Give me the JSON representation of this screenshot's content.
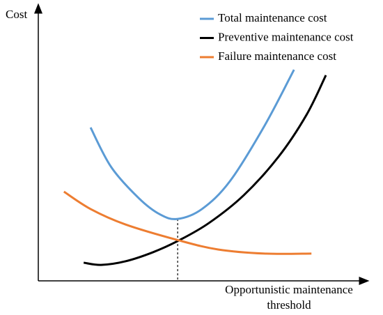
{
  "chart_data": {
    "type": "line",
    "y_label": "Cost",
    "x_label": "Opportunistic maintenance threshold",
    "xlim": [
      0,
      100
    ],
    "ylim": [
      0,
      100
    ],
    "series": [
      {
        "name": "Total maintenance cost",
        "color": "#5b9bd5",
        "x": [
          15.9,
          22.2,
          30.7,
          37.1,
          42.4,
          49.8,
          58.3,
          68.9,
          77.8
        ],
        "values": [
          55.7,
          41.3,
          29.9,
          24.1,
          22.5,
          26.1,
          36.2,
          56.5,
          76.7
        ]
      },
      {
        "name": "Preventive maintenance cost",
        "color": "#000000",
        "x": [
          13.8,
          19.1,
          26.5,
          34.9,
          42.8,
          51.9,
          62.5,
          73.1,
          81.6,
          87.5
        ],
        "values": [
          6.6,
          5.8,
          7.1,
          10.4,
          14.7,
          21.0,
          31.1,
          45.1,
          60.3,
          74.7
        ]
      },
      {
        "name": "Failure maintenance cost",
        "color": "#ed7d31",
        "x": [
          7.8,
          15.9,
          26.5,
          42.8,
          54.7,
          68.9,
          83.1
        ],
        "values": [
          32.4,
          26.1,
          20.5,
          14.7,
          11.4,
          9.9,
          9.9
        ]
      }
    ]
  }
}
